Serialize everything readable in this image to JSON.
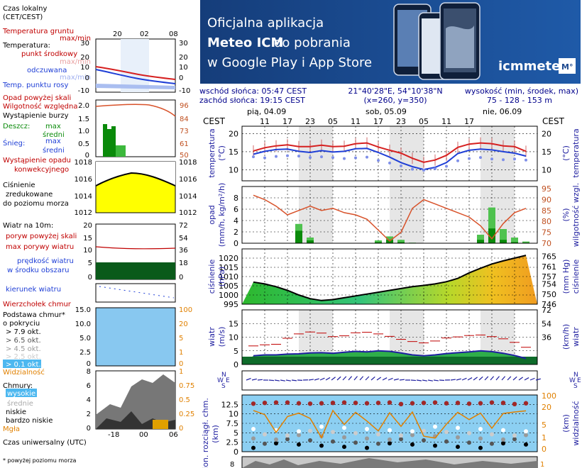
{
  "legend": {
    "time_local": "Czas lokalny",
    "time_local_tz": "(CET/CEST)",
    "ground_temp": "Temperatura gruntu",
    "maxmin": "max/min",
    "temperature": "Temperatura:",
    "point_mid": "punkt środkowy",
    "max_min_faint": "max/min",
    "feels": "odczuwana",
    "dew": "Temp. punktu rosy",
    "precip_above": "Opad powyżej skali",
    "humidity": "Wilgotność względna",
    "storm": "Wystąpienie burzy",
    "rain": "Deszcz:",
    "max": "max",
    "avg": "średni",
    "snow": "Śnieg:",
    "convective1": "Wystąpienie opadu",
    "convective2": "konwekcyjnego",
    "pressure1": "Ciśnienie",
    "pressure2": "zredukowane",
    "pressure3": "do poziomu morza",
    "wind": "Wiatr na 10m:",
    "gusts_above": "poryw powyżej skali",
    "gust_max": "max porywy wiatru",
    "wind_speed1": "prędkość wiatru",
    "wind_speed2": "w środku obszaru",
    "wind_dir": "kierunek wiatru",
    "cloud_top": "Wierzchołek chmur",
    "cloud_base1": "Podstawa chmur*",
    "cloud_base2": "o pokryciu",
    "okt79": "> 7.9 okt.",
    "okt65": "> 6.5 okt.",
    "okt45": "> 4.5 okt.",
    "okt25": "> 2.5 okt.",
    "okt01": "> 0.1 okt.",
    "visibility": "Widzialność",
    "clouds": "Chmury:",
    "high": "wysokie",
    "mid": "średnie",
    "low": "niskie",
    "very_low": "bardzo niskie",
    "fog": "Mgła",
    "utc": "Czas uniwersalny (UTC)",
    "footnote": "* powyżej poziomu morza"
  },
  "banner": {
    "line1": "Oficjalna aplikacja",
    "line2a": "Meteo ICM",
    "line2b": " do pobrania",
    "line3": "w Google Play i App Store",
    "logo": "icmmeteo",
    "logo_box": "M°",
    "bg_color": "#1e4a8f"
  },
  "info": {
    "sunrise": "wschód słońca: 05:47 CEST",
    "sunset": "zachód słońca: 19:15 CEST",
    "coords": "21°40'28\"E, 54°10'38\"N",
    "grid": "(x=260, y=350)",
    "alt_label": "wysokość (min, środek, max)",
    "alt_value": "75 - 128 - 153 m"
  },
  "timeline": {
    "tz": "CEST",
    "days": [
      "pią, 04.09",
      "sob, 05.09",
      "nie, 06.09"
    ],
    "hours": [
      "11",
      "17",
      "23",
      "05",
      "11",
      "17",
      "23",
      "05",
      "11",
      "17"
    ]
  },
  "mini_axis": {
    "top_hours": [
      "20",
      "02",
      "08"
    ],
    "bottom_hours": [
      "-18",
      "00",
      "06"
    ]
  },
  "axes": {
    "temp_l": "temperatura",
    "temp_l_unit": "(°C)",
    "temp_r": "temperatura",
    "temp_r_unit": "(°C)",
    "precip_l": "opad",
    "precip_l_unit": "(mm/h, kg/m²/h)",
    "precip_r": "wilgotność wzgl.",
    "precip_r_unit": "(%)",
    "press_l": "ciśnienie",
    "press_l_unit": "(hPa)",
    "press_r": "ciśnienie",
    "press_r_unit": "(mm Hg)",
    "wind_l": "wiatr",
    "wind_l_unit": "(m/s)",
    "wind_r": "wiatr",
    "wind_r_unit": "(km/h)",
    "cloud_l": "pion. rozciągł. chm.",
    "cloud_l_unit": "(km)",
    "cloud_r": "widzialność",
    "cloud_r_unit": "(km)",
    "compass": {
      "n": "N",
      "e": "E",
      "s": "S",
      "w": "W"
    }
  },
  "chart_data": [
    {
      "type": "line",
      "title": "",
      "ylabel": "temperatura (°C)",
      "ylim": [
        7,
        22
      ],
      "y_ticks": [
        10,
        15,
        20
      ],
      "x_hours": [
        8,
        11,
        14,
        17,
        20,
        23,
        26,
        29,
        32,
        35,
        38,
        41,
        44,
        47,
        50,
        53,
        56,
        59,
        62,
        65,
        68,
        71,
        74,
        77,
        80
      ],
      "series": [
        {
          "color": "#d62020",
          "values": [
            15.2,
            16.1,
            16.6,
            16.9,
            16.4,
            16.4,
            16.8,
            16.4,
            16.5,
            17.2,
            17.4,
            16.3,
            15.4,
            14.6,
            13.2,
            12.1,
            12.7,
            14.0,
            16.2,
            17.1,
            17.4,
            17.2,
            16.6,
            16.4,
            15.1
          ]
        },
        {
          "color": "#1f3fd6",
          "values": [
            14.3,
            15.1,
            15.6,
            15.7,
            15.1,
            14.8,
            15.3,
            14.9,
            15.1,
            15.8,
            15.9,
            14.8,
            13.5,
            12.0,
            10.9,
            10.1,
            10.7,
            12.0,
            14.5,
            15.4,
            15.7,
            15.5,
            15.0,
            14.6,
            13.8
          ]
        },
        {
          "color": "#7f8fe8",
          "values": [
            13.6,
            13.3,
            13.7,
            13.9,
            13.8,
            13.4,
            13.6,
            13.4,
            13.1,
            13.3,
            13.5,
            12.6,
            11.9,
            11.1,
            10.2,
            9.9,
            10.3,
            11.0,
            12.5,
            13.1,
            13.4,
            13.0,
            12.8,
            13.0,
            12.7
          ]
        }
      ],
      "right_ticks": [
        10,
        15,
        20
      ]
    },
    {
      "type": "bar",
      "ylabel": "opad (mm/h, kg/m²/h)",
      "ylim": [
        0,
        10
      ],
      "y_ticks": [
        0,
        2,
        4,
        6,
        8
      ],
      "right_ticks": [
        70,
        75,
        80,
        85,
        90,
        95
      ],
      "humidity_series": {
        "name": "",
        "color": "#d8522a",
        "values": [
          92,
          90,
          87,
          83,
          85,
          87,
          85,
          86,
          84,
          83,
          81,
          76,
          71,
          75,
          86,
          90,
          88,
          86,
          84,
          82,
          78,
          72,
          79,
          84,
          86
        ]
      },
      "precip_max": [
        0,
        0,
        0,
        0,
        3.4,
        1.0,
        0,
        0,
        0,
        0,
        0,
        0.5,
        1.2,
        0.6,
        0.1,
        0,
        0,
        0,
        0,
        0,
        1.5,
        6.3,
        2.5,
        1.0,
        0.3
      ],
      "precip_avg": [
        0,
        0,
        0,
        0,
        2.2,
        0.5,
        0,
        0,
        0,
        0,
        0,
        0.2,
        0.6,
        0.2,
        0,
        0,
        0,
        0,
        0,
        0,
        0.6,
        2.6,
        0.6,
        0.2,
        0.1
      ]
    },
    {
      "type": "area",
      "ylabel": "ciśnienie (hPa)",
      "ylim": [
        995,
        1025
      ],
      "y_ticks": [
        995,
        1000,
        1005,
        1010,
        1015,
        1020
      ],
      "right_ticks": [
        746,
        750,
        754,
        757,
        761,
        765
      ],
      "values": [
        1007.0,
        1006.0,
        1004.5,
        1002.5,
        1000.0,
        998.0,
        997.0,
        997.5,
        998.5,
        999.5,
        1000.5,
        1001.5,
        1002.5,
        1003.5,
        1004.5,
        1005.2,
        1006.0,
        1007.2,
        1009.0,
        1012.0,
        1014.5,
        1016.8,
        1018.5,
        1020.0,
        1021.5
      ]
    },
    {
      "type": "area",
      "ylabel": "wiatr (m/s)",
      "ylim": [
        0,
        20
      ],
      "y_ticks": [
        0,
        5,
        10,
        15
      ],
      "right_ticks": [
        36,
        54,
        72
      ],
      "speed": [
        3.2,
        3.5,
        3.5,
        3.8,
        3.9,
        4.2,
        4.3,
        4.1,
        4.5,
        4.8,
        4.6,
        5.0,
        4.8,
        4.2,
        3.5,
        3.2,
        3.5,
        4.0,
        4.3,
        4.6,
        5.0,
        4.7,
        4.1,
        3.3,
        2.2
      ],
      "gusts": [
        6.8,
        7.2,
        7.4,
        9.6,
        11.2,
        11.9,
        11.5,
        10.2,
        10.5,
        11.6,
        11.8,
        11.2,
        10.3,
        9.2,
        8.4,
        7.9,
        8.6,
        9.7,
        10.1,
        10.6,
        10.8,
        10.2,
        9.4,
        8.1,
        6.3
      ]
    },
    {
      "type": "scatter",
      "ylabel": "pion. rozciągł. chm. (km)",
      "ylim": [
        0,
        15
      ],
      "y_ticks": [
        0,
        2.5,
        5.0,
        7.5,
        10.0,
        12.5
      ],
      "right_ticks": [
        0,
        1,
        5,
        20,
        100
      ],
      "cloud_top": [
        12.7,
        12.9,
        13.0,
        13.0,
        12.8,
        12.7,
        12.8,
        12.9,
        13.0,
        12.9,
        12.8,
        12.9,
        13.0,
        12.6,
        12.8,
        12.9,
        13.0,
        12.8,
        12.9,
        12.7,
        12.8,
        13.0,
        12.9,
        12.6,
        12.8
      ],
      "visibility": [
        10.9,
        9.8,
        5.1,
        9.3,
        10.2,
        8.8,
        3.7,
        10.9,
        7.2,
        10.4,
        8.1,
        5.5,
        10.3,
        6.7,
        10.5,
        4.1,
        3.6,
        7.3,
        10.4,
        8.5,
        10.2,
        6.2,
        10.1,
        10.5,
        10.8
      ]
    }
  ]
}
